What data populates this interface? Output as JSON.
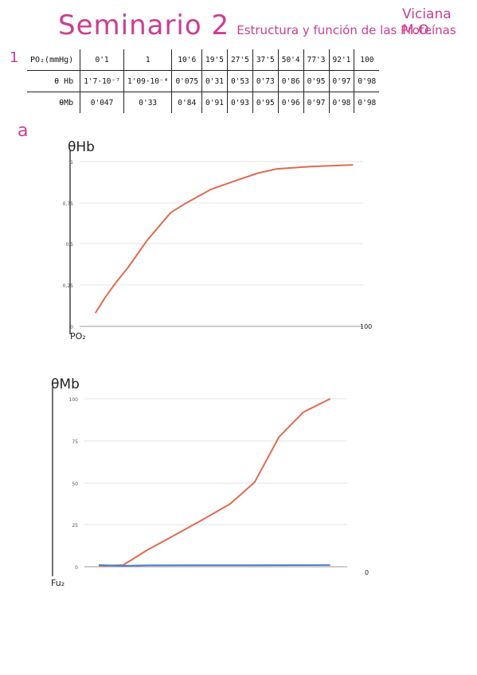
{
  "header": {
    "title": "Seminario 2",
    "subtitle": "Estructura y función de las Proteínas",
    "author": "Viciana M.O."
  },
  "exercise_number": "1",
  "section_letter": "a",
  "table": {
    "rows": [
      {
        "label": "PO₂(mmHg)",
        "cells": [
          "0'1",
          "1",
          "10'6",
          "19'5",
          "27'5",
          "37'5",
          "50'4",
          "77'3",
          "92'1",
          "100"
        ]
      },
      {
        "label": "θ Hb",
        "cells": [
          "1'7·10⁻⁷",
          "1'09·10⁻⁴",
          "0'075",
          "0'31",
          "0'53",
          "0'73",
          "0'86",
          "0'95",
          "0'97",
          "0'98"
        ]
      },
      {
        "label": "θMb",
        "cells": [
          "0'047",
          "0'33",
          "0'84",
          "0'91",
          "0'93",
          "0'95",
          "0'96",
          "0'97",
          "0'98",
          "0'98"
        ]
      }
    ]
  },
  "chart_data": [
    {
      "type": "line",
      "ylabel": "θHb",
      "xlabel": "PO₂",
      "ylim": [
        0,
        1
      ],
      "yticks": [
        "0",
        "0,25",
        "0,5",
        "0,75",
        "1"
      ],
      "x_end_label": "100",
      "grid": true,
      "colors": {
        "series": "#e06a50",
        "grid": "#e3e3e3"
      },
      "series": [
        {
          "values": [
            [
              0.5,
              0.08
            ],
            [
              4,
              0.17
            ],
            [
              8,
              0.26
            ],
            [
              13,
              0.36
            ],
            [
              20,
              0.52
            ],
            [
              29,
              0.69
            ],
            [
              34,
              0.74
            ],
            [
              44,
              0.83
            ],
            [
              51,
              0.87
            ],
            [
              62,
              0.93
            ],
            [
              69,
              0.955
            ],
            [
              82,
              0.97
            ],
            [
              98,
              0.98
            ]
          ]
        }
      ]
    },
    {
      "type": "line",
      "ylabel": "θMb",
      "xlabel": "Fu₂",
      "ylim": [
        0,
        100
      ],
      "yticks": [
        "0",
        "25",
        "50",
        "75",
        "100"
      ],
      "x_end_label": "0",
      "grid": true,
      "colors": {
        "series1": "#e06a50",
        "series2": "#4a7fd6",
        "grid": "#e3e3e3"
      },
      "series": [
        {
          "values": [
            [
              0,
              0.5
            ],
            [
              10,
              1
            ],
            [
              20,
              10
            ],
            [
              32,
              19.5
            ],
            [
              42,
              27.5
            ],
            [
              54,
              37.5
            ],
            [
              64,
              50.4
            ],
            [
              74,
              77.3
            ],
            [
              84,
              92.1
            ],
            [
              95,
              100
            ]
          ]
        },
        {
          "values": [
            [
              0,
              1
            ],
            [
              10,
              0.5
            ],
            [
              20,
              0.8
            ],
            [
              40,
              0.9
            ],
            [
              60,
              0.9
            ],
            [
              80,
              0.95
            ],
            [
              95,
              1
            ]
          ]
        }
      ]
    }
  ]
}
